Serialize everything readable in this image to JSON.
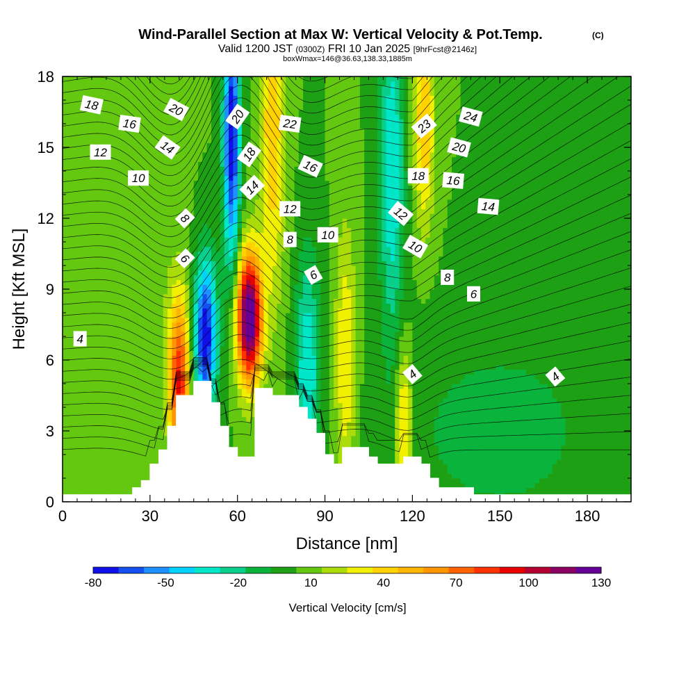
{
  "chart_data": {
    "type": "heatmap",
    "title": {
      "main": "Wind-Parallel Section at Max W: Vertical Velocity & Pot.Temp.",
      "main_note": "(C)",
      "line2_a": "Valid 1200 JST",
      "line2_b": "(0300Z)",
      "line2_c": "FRI 10 Jan 2025",
      "line2_d": "[9hrFcst@2146z]",
      "line3": "boxWmax=146@36.63,138.33,1885m"
    },
    "xlabel": "Distance [nm]",
    "ylabel": "Height [Kft MSL]",
    "xlim": [
      0,
      195
    ],
    "ylim": [
      0,
      18
    ],
    "x_ticks": [
      "0",
      "30",
      "60",
      "90",
      "120",
      "150",
      "180"
    ],
    "y_ticks": [
      "0",
      "3",
      "6",
      "9",
      "12",
      "15",
      "18"
    ],
    "x_tick_values": [
      0,
      30,
      60,
      90,
      120,
      150,
      180
    ],
    "y_tick_values": [
      0,
      3,
      6,
      9,
      12,
      15,
      18
    ],
    "colorbar": {
      "title": "Vertical Velocity [cm/s]",
      "min": -80,
      "max": 130,
      "step": 10,
      "tick_labels": [
        "-80",
        "-50",
        "-20",
        "10",
        "40",
        "70",
        "100",
        "130"
      ],
      "tick_values": [
        -80,
        -50,
        -20,
        10,
        40,
        70,
        100,
        130
      ],
      "colors": [
        "#1010e8",
        "#1450f0",
        "#1e90ff",
        "#00d2ff",
        "#00e6c8",
        "#0ace8c",
        "#0ab43c",
        "#1ea014",
        "#64c810",
        "#aadc0a",
        "#f0f000",
        "#ffd200",
        "#ffb400",
        "#ff9600",
        "#ff6400",
        "#ff3200",
        "#e60000",
        "#b40032",
        "#8c0064",
        "#640096"
      ]
    },
    "vertical_velocity_cm_s": {
      "background": 0,
      "features": [
        {
          "x": 49,
          "y": 7.0,
          "w": -80,
          "sx": 2.8,
          "sy": 2.4
        },
        {
          "x": 58,
          "y": 15.5,
          "w": -80,
          "sx": 2.0,
          "sy": 4.0
        },
        {
          "x": 64,
          "y": 7.8,
          "w": 130,
          "sx": 3.0,
          "sy": 1.9
        },
        {
          "x": 40,
          "y": 5.0,
          "w": 80,
          "sx": 2.5,
          "sy": 2.5
        },
        {
          "x": 72,
          "y": 16.0,
          "w": 40,
          "sx": 3.0,
          "sy": 5.0
        },
        {
          "x": 84,
          "y": 5.5,
          "w": -40,
          "sx": 3.0,
          "sy": 3.5
        },
        {
          "x": 97,
          "y": 6.0,
          "w": 30,
          "sx": 2.5,
          "sy": 4.0
        },
        {
          "x": 113,
          "y": 14.0,
          "w": -40,
          "sx": 3.0,
          "sy": 5.0
        },
        {
          "x": 117,
          "y": 3.0,
          "w": 40,
          "sx": 2.0,
          "sy": 2.5
        },
        {
          "x": 124,
          "y": 16.0,
          "w": 40,
          "sx": 2.5,
          "sy": 3.0
        },
        {
          "x": 150,
          "y": 3.0,
          "w": -15,
          "sx": 25.0,
          "sy": 3.0
        },
        {
          "x": 20,
          "y": 9.0,
          "w": 10,
          "sx": 15.0,
          "sy": 3.5
        }
      ]
    },
    "terrain_kft": {
      "x": [
        0,
        22,
        24,
        27,
        30,
        33,
        36,
        39,
        42,
        45,
        48,
        51,
        54,
        57,
        60,
        63,
        66,
        69,
        72,
        75,
        78,
        81,
        84,
        87,
        90,
        93,
        96,
        99,
        102,
        105,
        108,
        111,
        114,
        117,
        120,
        123,
        126,
        129,
        132,
        135,
        138,
        141,
        195
      ],
      "height": [
        0.3,
        0.3,
        0.6,
        0.9,
        1.6,
        2.2,
        3.2,
        4.5,
        4.5,
        5.1,
        5.1,
        4.2,
        3.2,
        2.3,
        1.9,
        1.9,
        4.8,
        4.8,
        4.5,
        4.5,
        4.5,
        4.0,
        3.5,
        2.9,
        2.0,
        1.6,
        2.3,
        2.3,
        2.3,
        1.9,
        1.6,
        1.6,
        1.6,
        1.9,
        1.9,
        1.6,
        1.0,
        0.6,
        0.6,
        0.6,
        0.6,
        0.3,
        0.3
      ]
    },
    "potential_temperature_contours": {
      "label_values": [
        "4",
        "6",
        "8",
        "10",
        "12",
        "14",
        "16",
        "18",
        "20",
        "22",
        "23",
        "24"
      ],
      "labels": [
        {
          "text": "18",
          "x": 10,
          "y": 16.8,
          "rot": 12
        },
        {
          "text": "16",
          "x": 23,
          "y": 16.0,
          "rot": 8
        },
        {
          "text": "12",
          "x": 13,
          "y": 14.8,
          "rot": 0
        },
        {
          "text": "10",
          "x": 26,
          "y": 13.7,
          "rot": 0
        },
        {
          "text": "20",
          "x": 39,
          "y": 16.6,
          "rot": 28
        },
        {
          "text": "14",
          "x": 36,
          "y": 15.0,
          "rot": 35
        },
        {
          "text": "8",
          "x": 42,
          "y": 12.0,
          "rot": 45
        },
        {
          "text": "6",
          "x": 42,
          "y": 10.3,
          "rot": 45
        },
        {
          "text": "4",
          "x": 6,
          "y": 6.9,
          "rot": 0
        },
        {
          "text": "20",
          "x": 60,
          "y": 16.3,
          "rot": -55
        },
        {
          "text": "18",
          "x": 64,
          "y": 14.7,
          "rot": -55
        },
        {
          "text": "14",
          "x": 65,
          "y": 13.3,
          "rot": -45
        },
        {
          "text": "22",
          "x": 78,
          "y": 16.0,
          "rot": 8
        },
        {
          "text": "16",
          "x": 85,
          "y": 14.2,
          "rot": 25
        },
        {
          "text": "12",
          "x": 78,
          "y": 12.4,
          "rot": 0
        },
        {
          "text": "8",
          "x": 78,
          "y": 11.1,
          "rot": 0
        },
        {
          "text": "10",
          "x": 91,
          "y": 11.3,
          "rot": 0
        },
        {
          "text": "6",
          "x": 86,
          "y": 9.6,
          "rot": -30
        },
        {
          "text": "23",
          "x": 124,
          "y": 15.9,
          "rot": -40
        },
        {
          "text": "24",
          "x": 140,
          "y": 16.3,
          "rot": 15
        },
        {
          "text": "20",
          "x": 136,
          "y": 15.0,
          "rot": 15
        },
        {
          "text": "18",
          "x": 122,
          "y": 13.8,
          "rot": 0
        },
        {
          "text": "16",
          "x": 134,
          "y": 13.6,
          "rot": 5
        },
        {
          "text": "14",
          "x": 146,
          "y": 12.5,
          "rot": 5
        },
        {
          "text": "12",
          "x": 116,
          "y": 12.2,
          "rot": 40
        },
        {
          "text": "10",
          "x": 121,
          "y": 10.8,
          "rot": 30
        },
        {
          "text": "8",
          "x": 132,
          "y": 9.5,
          "rot": 0
        },
        {
          "text": "6",
          "x": 141,
          "y": 8.8,
          "rot": 0
        },
        {
          "text": "4",
          "x": 120,
          "y": 5.4,
          "rot": -40
        },
        {
          "text": "4",
          "x": 169,
          "y": 5.3,
          "rot": -40
        }
      ]
    },
    "grid": false,
    "legend": "bottom"
  }
}
